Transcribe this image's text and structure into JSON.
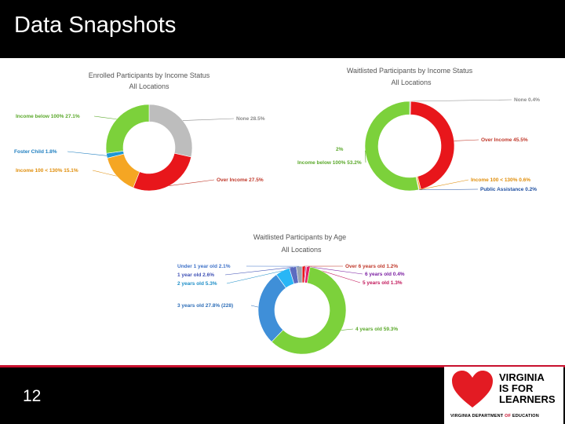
{
  "slide": {
    "title": "Data Snapshots",
    "page_number": "12"
  },
  "logo": {
    "line1": "VIRGINIA",
    "line2": "IS FOR",
    "line3": "LEARNERS",
    "sub_before": "VIRGINIA DEPARTMENT ",
    "sub_of": "OF",
    "sub_after": " EDUCATION"
  },
  "chart_data": [
    {
      "type": "pie",
      "title": "Enrolled Participants by Income Status",
      "subtitle": "All Locations",
      "slices": [
        {
          "label": "None",
          "value": 28.5,
          "text": "None  28.5%",
          "color": "#bdbdbd",
          "label_color": "#8a8a8a"
        },
        {
          "label": "Over Income",
          "value": 27.5,
          "text": "Over Income  27.5%",
          "color": "#e8161b",
          "label_color": "#c0392b"
        },
        {
          "label": "Income 100 < 130%",
          "value": 15.1,
          "text": "Income 100 < 130%  15.1%",
          "color": "#f5a623",
          "label_color": "#e08e0b"
        },
        {
          "label": "Foster Child",
          "value": 1.8,
          "text": "Foster Child  1.8%",
          "color": "#1f97d4",
          "label_color": "#1f7fc0"
        },
        {
          "label": "Income below 100%",
          "value": 27.1,
          "text": "Income below 100%  27.1%",
          "color": "#7cd13b",
          "label_color": "#5aa82a"
        }
      ]
    },
    {
      "type": "pie",
      "title": "Waitlisted Participants by Income Status",
      "subtitle": "All Locations",
      "slices": [
        {
          "label": "None",
          "value": 0.4,
          "text": "None  0.4%",
          "color": "#bdbdbd",
          "label_color": "#8a8a8a"
        },
        {
          "label": "Over Income",
          "value": 45.5,
          "text": "Over Income  45.5%",
          "color": "#e8161b",
          "label_color": "#c0392b"
        },
        {
          "label": "Income 100 < 130%",
          "value": 0.6,
          "text": "Income 100 < 130%  0.6%",
          "color": "#f5a623",
          "label_color": "#e08e0b"
        },
        {
          "label": "Public Assistance",
          "value": 0.2,
          "text": "Public Assistance  0.2%",
          "color": "#1f5fb4",
          "label_color": "#1f4fa0"
        },
        {
          "label": "Income below 100%",
          "value": 53.2,
          "text": "Income below 100%  53.2%",
          "color": "#7cd13b",
          "label_color": "#5aa82a"
        }
      ],
      "extra_label": "2%"
    },
    {
      "type": "pie",
      "title": "Waitlisted Participants by Age",
      "subtitle": "All Locations",
      "slices": [
        {
          "label": "Over 6 years old",
          "value": 1.2,
          "text": "Over 6 years old  1.2%",
          "color": "#e8161b",
          "label_color": "#c0392b"
        },
        {
          "label": "6 years old",
          "value": 0.4,
          "text": "6 years old  0.4%",
          "color": "#9b2fae",
          "label_color": "#7b1fa2"
        },
        {
          "label": "5 years old",
          "value": 1.3,
          "text": "5 years old  1.3%",
          "color": "#e91e63",
          "label_color": "#c2185b"
        },
        {
          "label": "4 years old",
          "value": 59.3,
          "text": "4 years old  59.3%",
          "color": "#7cd13b",
          "label_color": "#5aa82a"
        },
        {
          "label": "3 years old",
          "value": 27.8,
          "text": "3 years old  27.8% (228)",
          "color": "#3f8fd8",
          "label_color": "#2f6fb8"
        },
        {
          "label": "2 years old",
          "value": 5.3,
          "text": "2 years old  5.3%",
          "color": "#29b6f6",
          "label_color": "#1f8fc8"
        },
        {
          "label": "1 year old",
          "value": 2.6,
          "text": "1 year old  2.6%",
          "color": "#5c6bc0",
          "label_color": "#3f51b5"
        },
        {
          "label": "Under 1 year old",
          "value": 2.1,
          "text": "Under 1 year old  2.1%",
          "color": "#9aa5b1",
          "label_color": "#3f72c8"
        }
      ]
    }
  ]
}
